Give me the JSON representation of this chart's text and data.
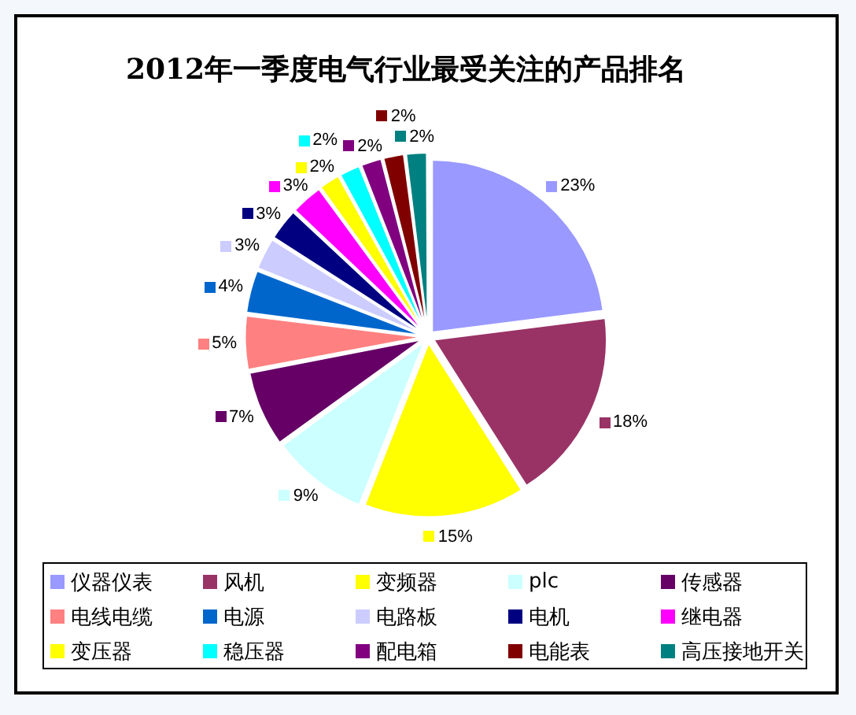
{
  "chart_data": {
    "type": "pie",
    "title": "2012年一季度电气行业最受关注的产品排名",
    "categories": [
      "仪器仪表",
      "风机",
      "变频器",
      "plc",
      "传感器",
      "电线电缆",
      "电源",
      "电路板",
      "电机",
      "继电器",
      "变压器",
      "稳压器",
      "配电箱",
      "电能表",
      "高压接地开关"
    ],
    "values": [
      23,
      18,
      15,
      9,
      7,
      5,
      4,
      3,
      3,
      3,
      2,
      2,
      2,
      2,
      2
    ],
    "colors": [
      "#9999ff",
      "#993366",
      "#ffff00",
      "#ccffff",
      "#660066",
      "#ff8080",
      "#0066cc",
      "#ccccff",
      "#000080",
      "#ff00ff",
      "#ffff00",
      "#00ffff",
      "#800080",
      "#800000",
      "#008080"
    ],
    "value_labels": [
      "23%",
      "18%",
      "15%",
      "9%",
      "7%",
      "5%",
      "4%",
      "3%",
      "3%",
      "3%",
      "2%",
      "2%",
      "2%",
      "2%",
      "2%"
    ],
    "legend": "bottom"
  }
}
